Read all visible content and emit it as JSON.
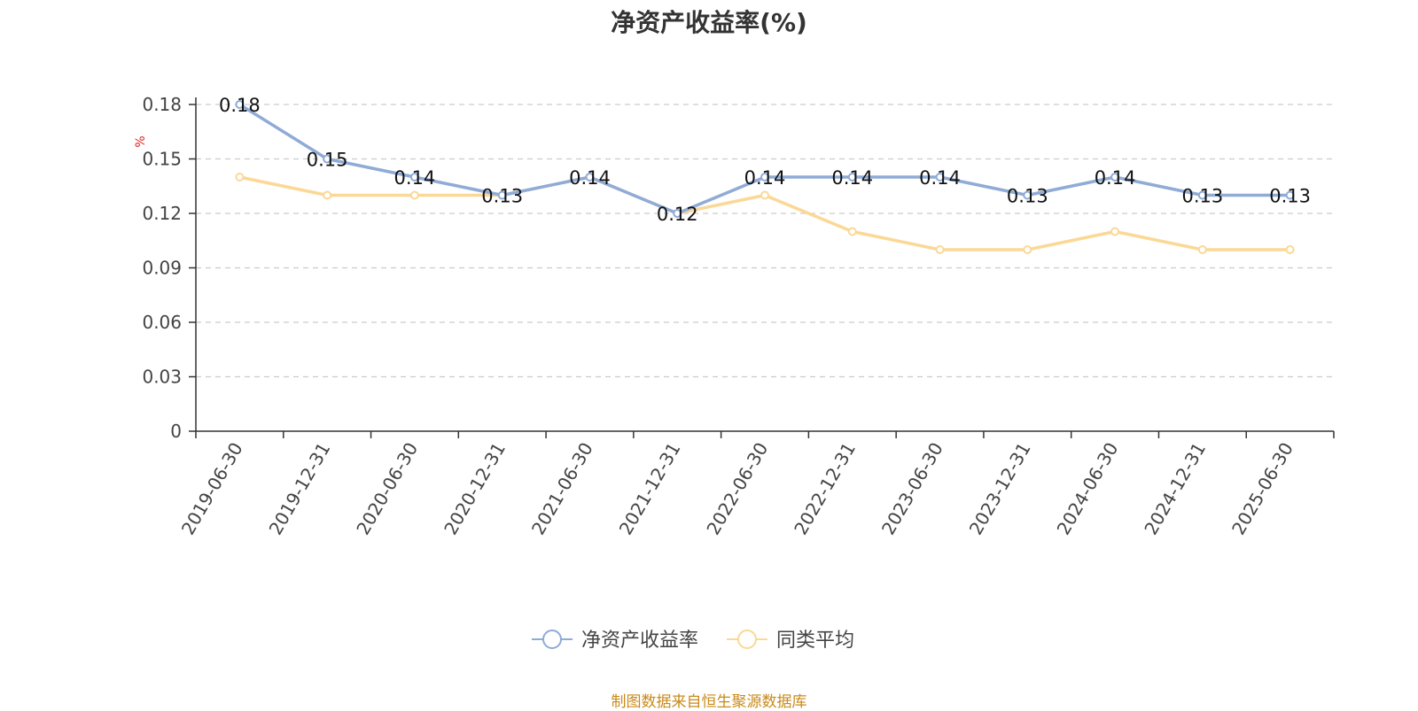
{
  "title": "净资产收益率(%)",
  "source_note": "制图数据来自恒生聚源数据库",
  "colors": {
    "series_1": "#8fabd6",
    "series_2": "#fbd896",
    "grid": "#cccccc",
    "axis": "#333333",
    "unit": "#e02020",
    "source": "#c98a1a"
  },
  "chart_data": {
    "type": "line",
    "title": "净资产收益率(%)",
    "ylabel": "%",
    "xlabel": "",
    "ylim": [
      0,
      0.18
    ],
    "yticks": [
      "0",
      "0.03",
      "0.06",
      "0.09",
      "0.12",
      "0.15",
      "0.18"
    ],
    "grid": true,
    "legend_position": "bottom-center",
    "categories": [
      "2019-06-30",
      "2019-12-31",
      "2020-06-30",
      "2020-12-31",
      "2021-06-30",
      "2021-12-31",
      "2022-06-30",
      "2022-12-31",
      "2023-06-30",
      "2023-12-31",
      "2024-06-30",
      "2024-12-31",
      "2025-06-30"
    ],
    "series": [
      {
        "name": "净资产收益率",
        "values": [
          0.18,
          0.15,
          0.14,
          0.13,
          0.14,
          0.12,
          0.14,
          0.14,
          0.14,
          0.13,
          0.14,
          0.13,
          0.13
        ],
        "data_labels": [
          "0.18",
          "0.15",
          "0.14",
          "0.13",
          "0.14",
          "0.12",
          "0.14",
          "0.14",
          "0.14",
          "0.13",
          "0.14",
          "0.13",
          "0.13"
        ]
      },
      {
        "name": "同类平均",
        "values": [
          0.14,
          0.13,
          0.13,
          0.13,
          0.14,
          0.12,
          0.13,
          0.11,
          0.1,
          0.1,
          0.11,
          0.1,
          0.1
        ]
      }
    ]
  }
}
